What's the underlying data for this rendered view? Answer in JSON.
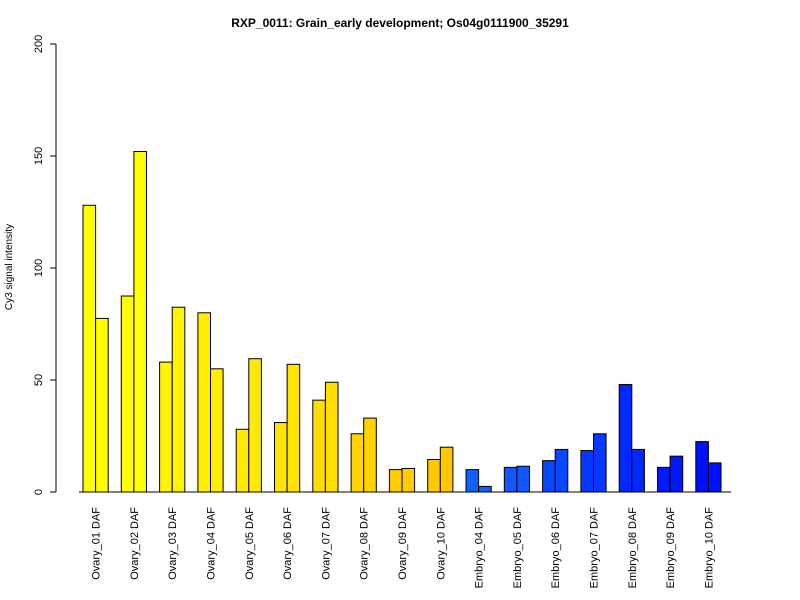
{
  "chart_data": {
    "type": "bar",
    "title": "RXP_0011: Grain_early development; Os04g0111900_35291",
    "xlabel": "",
    "ylabel": "Cy3 signal intensity",
    "ylim": [
      0,
      200
    ],
    "yticks": [
      0,
      50,
      100,
      150,
      200
    ],
    "grid": false,
    "legend": "none",
    "categories": [
      "Ovary_01 DAF",
      "Ovary_02 DAF",
      "Ovary_03 DAF",
      "Ovary_04 DAF",
      "Ovary_05 DAF",
      "Ovary_06 DAF",
      "Ovary_07 DAF",
      "Ovary_08 DAF",
      "Ovary_09 DAF",
      "Ovary_10 DAF",
      "Embryo_04 DAF",
      "Embryo_05 DAF",
      "Embryo_06 DAF",
      "Embryo_07 DAF",
      "Embryo_08 DAF",
      "Embryo_09 DAF",
      "Embryo_10 DAF"
    ],
    "colors": [
      "#ffff00",
      "#ffff00",
      "#fff300",
      "#ffee00",
      "#ffe900",
      "#ffe400",
      "#ffdd00",
      "#ffd200",
      "#ffcc00",
      "#ffc800",
      "#1060ff",
      "#1058ff",
      "#0848ff",
      "#0838ff",
      "#0028ff",
      "#0018ff",
      "#0010ff"
    ],
    "series": [
      {
        "values": [
          128,
          87.5,
          58,
          80,
          28,
          31,
          41,
          26,
          10,
          14.5,
          10,
          11,
          14,
          18.5,
          48,
          11,
          22.5
        ]
      },
      {
        "values": [
          77.5,
          152,
          82.5,
          55,
          59.5,
          57,
          49,
          33,
          10.5,
          20,
          2.5,
          11.5,
          19,
          26,
          19,
          16,
          13
        ]
      }
    ]
  }
}
